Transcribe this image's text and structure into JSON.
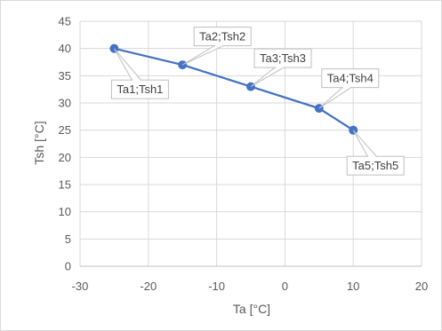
{
  "chart_data": {
    "type": "scatter",
    "xlabel": "Ta [°C]",
    "ylabel": "Tsh [°C]",
    "xlim": [
      -30,
      20
    ],
    "ylim": [
      0,
      45
    ],
    "xticks": [
      -30,
      -20,
      -10,
      0,
      10,
      20
    ],
    "yticks": [
      0,
      5,
      10,
      15,
      20,
      25,
      30,
      35,
      40,
      45
    ],
    "grid": true,
    "legend": "none",
    "line_color": "#4472c4",
    "series": [
      {
        "x": [
          -25,
          -15,
          -5,
          5,
          10
        ],
        "y": [
          40,
          37,
          33,
          29,
          25
        ],
        "data_labels": [
          "Ta1;Tsh1",
          "Ta2;Tsh2",
          "Ta3;Tsh3",
          "Ta4;Tsh4",
          "Ta5;Tsh5"
        ]
      }
    ]
  }
}
